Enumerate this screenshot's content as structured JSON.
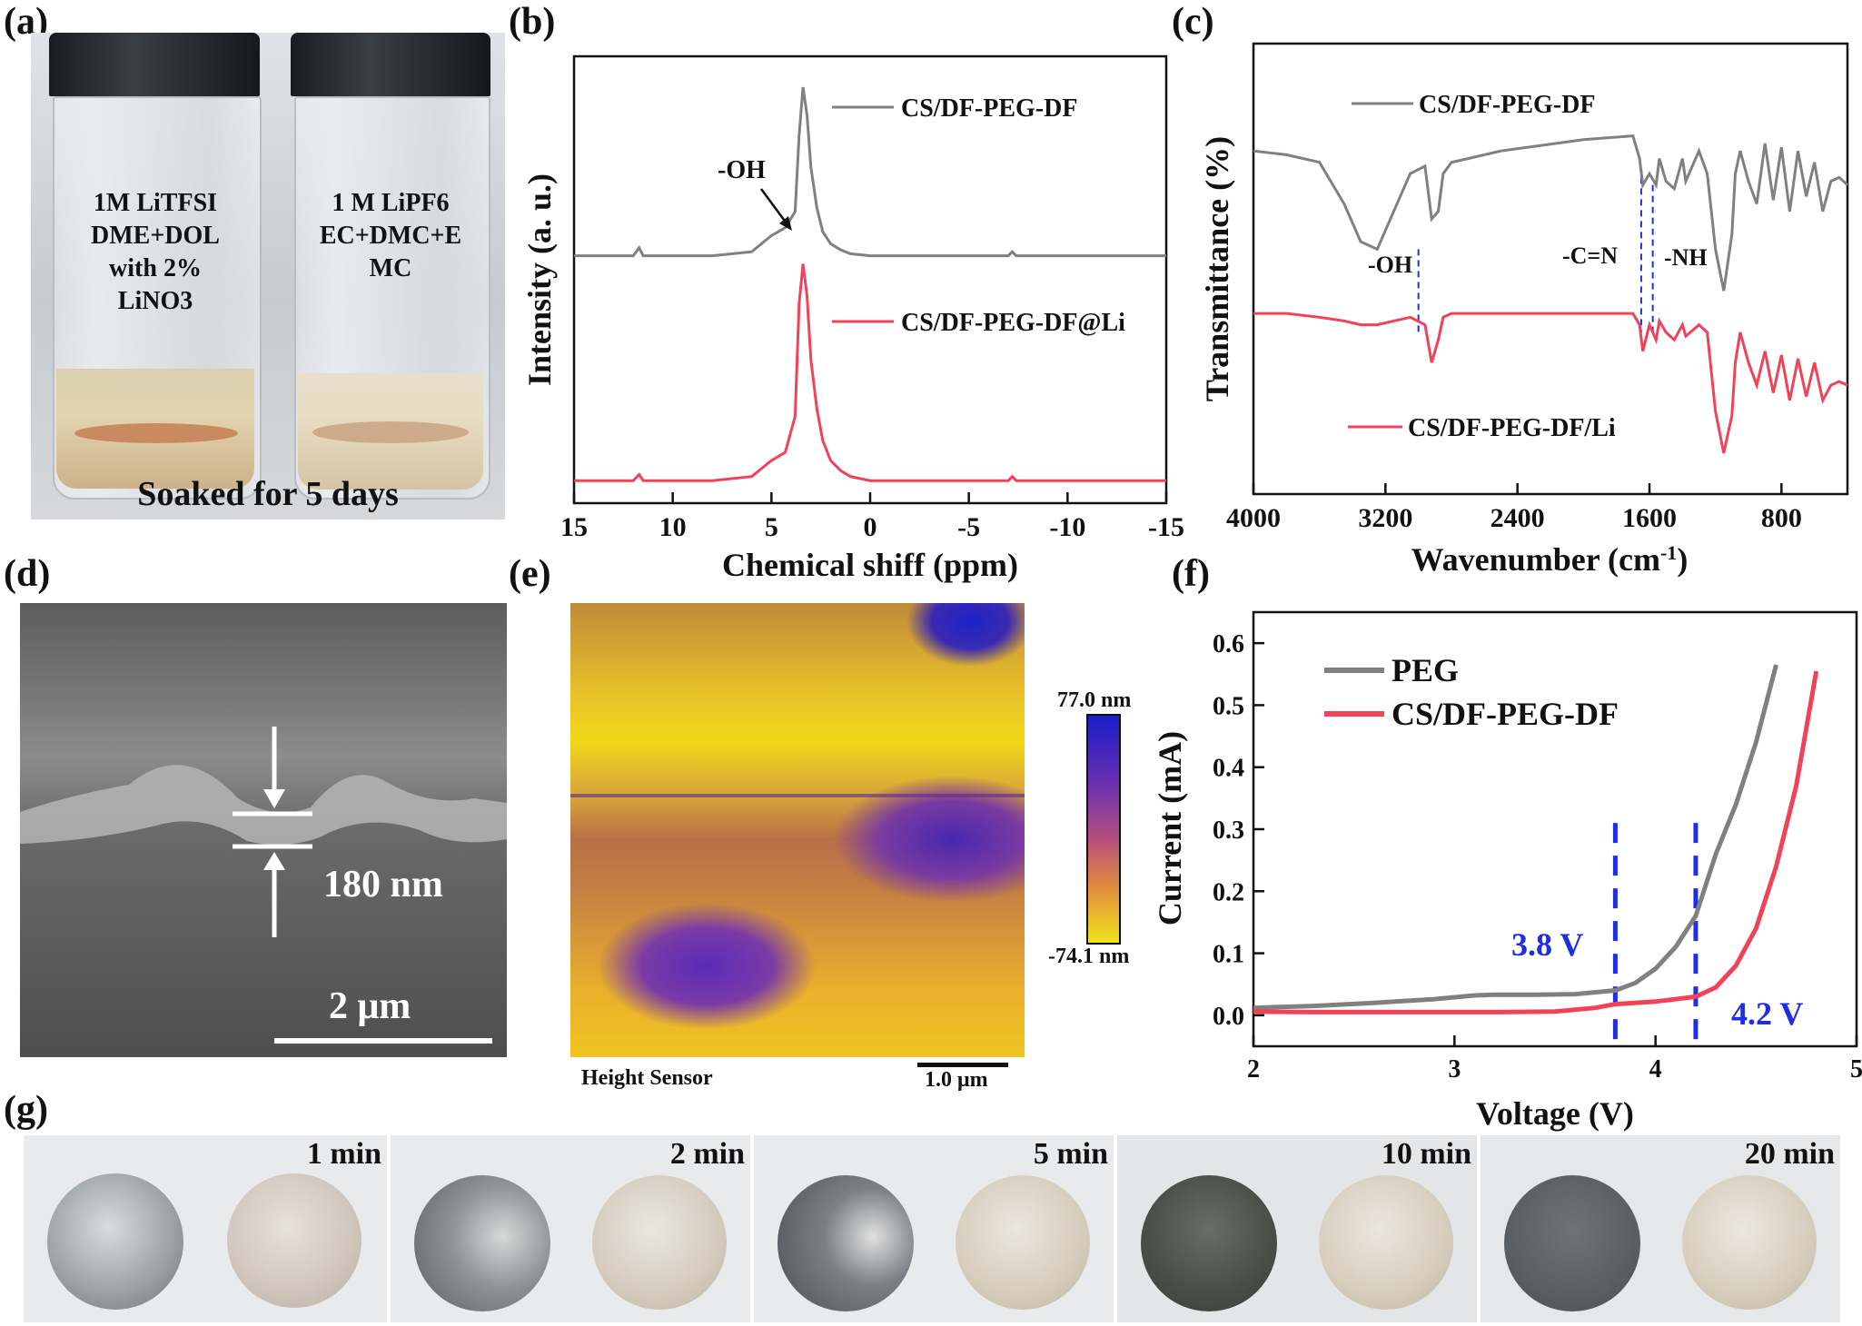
{
  "panel_labels": [
    "(a)",
    "(b)",
    "(c)",
    "(d)",
    "(e)",
    "(f)",
    "(g)"
  ],
  "colors": {
    "gray": "#808080",
    "red": "#f2425a",
    "blue": "#1f2ee0",
    "dark": "#111111"
  },
  "panel_a": {
    "vial_left": [
      "1M LiTFSI",
      "DME+DOL",
      "with 2%",
      "LiNO3"
    ],
    "vial_right": [
      "1 M LiPF6",
      "EC+DMC+E",
      "MC"
    ],
    "caption": "Soaked for 5 days"
  },
  "panel_d": {
    "thickness": "180 nm",
    "scale": "2 μm"
  },
  "panel_e": {
    "max": "77.0 nm",
    "min": "-74.1 nm",
    "sensor": "Height Sensor",
    "scale": "1.0 μm"
  },
  "panel_g": {
    "times": [
      "1 min",
      "2 min",
      "5 min",
      "10 min",
      "20 min"
    ]
  },
  "chart_data": [
    {
      "panel": "b",
      "type": "line",
      "title": "",
      "xlabel": "Chemical shiff (ppm)",
      "ylabel": "Intensity (a. u.)",
      "xlim": [
        15,
        -15
      ],
      "xticks": [
        "15",
        "10",
        "5",
        "0",
        "-5",
        "-10",
        "-15"
      ],
      "annotation": "-OH",
      "series": [
        {
          "name": "CS/DF-PEG-DF",
          "color": "#808080",
          "x": [
            15,
            12,
            11.7,
            11.5,
            11,
            8,
            6,
            5,
            4.3,
            3.8,
            3.6,
            3.4,
            3.2,
            3,
            2.7,
            2.4,
            2,
            1.5,
            1,
            0,
            -3,
            -6,
            -7,
            -7.2,
            -7.4,
            -10,
            -15
          ],
          "y": [
            0.58,
            0.58,
            0.6,
            0.58,
            0.58,
            0.58,
            0.59,
            0.63,
            0.65,
            0.69,
            0.88,
            1.0,
            0.93,
            0.8,
            0.7,
            0.64,
            0.61,
            0.595,
            0.585,
            0.58,
            0.58,
            0.58,
            0.58,
            0.59,
            0.58,
            0.58,
            0.58
          ]
        },
        {
          "name": "CS/DF-PEG-DF@Li",
          "color": "#f2425a",
          "x": [
            15,
            12,
            11.7,
            11.5,
            11,
            8,
            6,
            5,
            4.3,
            3.8,
            3.6,
            3.4,
            3.2,
            3,
            2.7,
            2.4,
            2,
            1.5,
            1,
            0,
            -3,
            -6,
            -7,
            -7.2,
            -7.4,
            -10,
            -15
          ],
          "y": [
            0.02,
            0.02,
            0.035,
            0.02,
            0.02,
            0.02,
            0.03,
            0.07,
            0.09,
            0.18,
            0.46,
            0.56,
            0.48,
            0.32,
            0.2,
            0.12,
            0.07,
            0.045,
            0.03,
            0.02,
            0.02,
            0.02,
            0.02,
            0.03,
            0.02,
            0.02,
            0.02
          ]
        }
      ]
    },
    {
      "panel": "c",
      "type": "line",
      "title": "",
      "xlabel": "Wavenumber (cm",
      "xlabel_sup": "-1",
      "xlabel_end": ")",
      "ylabel": "Transmittance (%)",
      "xlim": [
        4000,
        400
      ],
      "xticks": [
        "4000",
        "3200",
        "2400",
        "1600",
        "800"
      ],
      "annotations": [
        "-OH",
        "-C=N",
        "-NH"
      ],
      "series": [
        {
          "name": "CS/DF-PEG-DF",
          "color": "#808080",
          "x": [
            4000,
            3800,
            3600,
            3450,
            3350,
            3250,
            3150,
            3050,
            2960,
            2920,
            2880,
            2850,
            2800,
            2700,
            2500,
            2000,
            1700,
            1660,
            1640,
            1600,
            1560,
            1540,
            1500,
            1450,
            1400,
            1380,
            1300,
            1250,
            1200,
            1150,
            1100,
            1080,
            1050,
            1000,
            950,
            900,
            850,
            800,
            750,
            700,
            650,
            600,
            550,
            500,
            450,
            400
          ],
          "y": [
            0.86,
            0.85,
            0.83,
            0.72,
            0.62,
            0.6,
            0.7,
            0.8,
            0.82,
            0.68,
            0.7,
            0.8,
            0.83,
            0.84,
            0.86,
            0.89,
            0.9,
            0.84,
            0.77,
            0.8,
            0.77,
            0.84,
            0.78,
            0.76,
            0.84,
            0.78,
            0.86,
            0.8,
            0.6,
            0.49,
            0.64,
            0.8,
            0.86,
            0.78,
            0.72,
            0.88,
            0.73,
            0.87,
            0.7,
            0.86,
            0.74,
            0.83,
            0.7,
            0.78,
            0.79,
            0.77
          ]
        },
        {
          "name": "CS/DF-PEG-DF/Li",
          "color": "#f2425a",
          "x": [
            4000,
            3800,
            3600,
            3450,
            3350,
            3250,
            3150,
            3050,
            2960,
            2920,
            2880,
            2850,
            2800,
            2700,
            2500,
            2000,
            1700,
            1660,
            1640,
            1600,
            1560,
            1540,
            1500,
            1450,
            1400,
            1380,
            1300,
            1250,
            1200,
            1150,
            1100,
            1080,
            1050,
            1000,
            950,
            900,
            850,
            800,
            750,
            700,
            650,
            600,
            550,
            500,
            450,
            400
          ],
          "y": [
            0.43,
            0.43,
            0.42,
            0.41,
            0.4,
            0.4,
            0.41,
            0.42,
            0.4,
            0.3,
            0.36,
            0.42,
            0.43,
            0.43,
            0.43,
            0.43,
            0.43,
            0.4,
            0.33,
            0.4,
            0.36,
            0.41,
            0.38,
            0.36,
            0.4,
            0.37,
            0.4,
            0.38,
            0.17,
            0.06,
            0.16,
            0.3,
            0.38,
            0.3,
            0.24,
            0.33,
            0.22,
            0.32,
            0.2,
            0.31,
            0.21,
            0.3,
            0.2,
            0.24,
            0.25,
            0.24
          ]
        }
      ],
      "dashed_markers_x": [
        3000,
        1650,
        1580
      ]
    },
    {
      "panel": "f",
      "type": "line",
      "title": "",
      "xlabel": "Voltage (V)",
      "ylabel": "Current (mA)",
      "xlim": [
        2,
        5
      ],
      "ylim": [
        -0.05,
        0.65
      ],
      "xticks": [
        "2",
        "3",
        "4",
        "5"
      ],
      "yticks": [
        "0.0",
        "0.1",
        "0.2",
        "0.3",
        "0.4",
        "0.5",
        "0.6"
      ],
      "annotations": [
        "3.8 V",
        "4.2 V"
      ],
      "markers_x": [
        3.8,
        4.2
      ],
      "series": [
        {
          "name": "PEG",
          "color": "#808080",
          "x": [
            2.0,
            2.3,
            2.6,
            2.9,
            3.1,
            3.2,
            3.4,
            3.6,
            3.8,
            3.9,
            4.0,
            4.1,
            4.2,
            4.25,
            4.3,
            4.4,
            4.5,
            4.6
          ],
          "y": [
            0.012,
            0.015,
            0.02,
            0.026,
            0.032,
            0.033,
            0.033,
            0.034,
            0.04,
            0.052,
            0.075,
            0.11,
            0.16,
            0.21,
            0.26,
            0.34,
            0.44,
            0.565
          ]
        },
        {
          "name": "CS/DF-PEG-DF",
          "color": "#f2425a",
          "x": [
            2.0,
            2.3,
            2.6,
            2.9,
            3.2,
            3.5,
            3.7,
            3.8,
            4.0,
            4.2,
            4.3,
            4.4,
            4.5,
            4.6,
            4.7,
            4.8
          ],
          "y": [
            0.006,
            0.005,
            0.005,
            0.005,
            0.005,
            0.006,
            0.012,
            0.018,
            0.022,
            0.03,
            0.045,
            0.08,
            0.14,
            0.24,
            0.37,
            0.555
          ]
        }
      ]
    }
  ]
}
